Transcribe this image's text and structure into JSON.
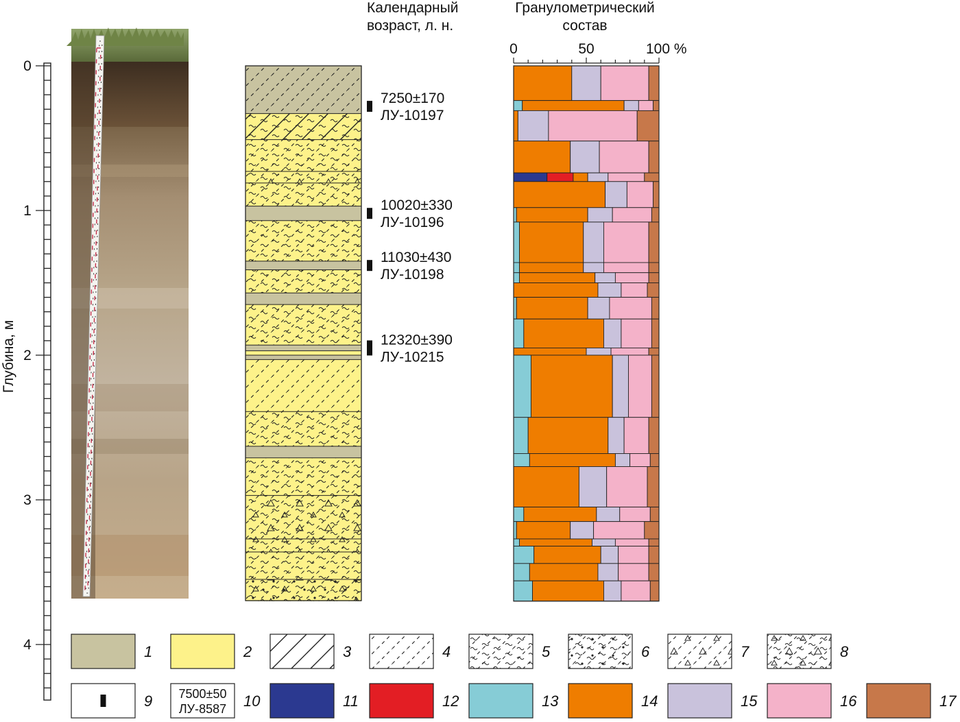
{
  "figure": {
    "depth_axis": {
      "label": "Глубина, м",
      "ticks": [
        0,
        1,
        2,
        3,
        4
      ],
      "range_m": [
        0,
        4.4
      ]
    },
    "age_header": [
      "Календарный",
      "возраст, л. н."
    ],
    "grain_header": [
      "Гранулометрический",
      "состав"
    ],
    "grain_ticks": [
      "0",
      "50",
      "100 %"
    ],
    "dates": [
      {
        "age": "7250±170",
        "lab": "ЛУ-10197",
        "depth_m": 0.28
      },
      {
        "age": "10020±330",
        "lab": "ЛУ-10196",
        "depth_m": 1.02
      },
      {
        "age": "11030±430",
        "lab": "ЛУ-10198",
        "depth_m": 1.38
      },
      {
        "age": "12320±390",
        "lab": "ЛУ-10215",
        "depth_m": 1.95
      }
    ],
    "legend": [
      {
        "num": "1",
        "type": "fill",
        "color": "#c8c3a0"
      },
      {
        "num": "2",
        "type": "fill",
        "color": "#fdf28a"
      },
      {
        "num": "3",
        "type": "hatch-solid"
      },
      {
        "num": "4",
        "type": "hatch-dashed"
      },
      {
        "num": "5",
        "type": "dashed-wavy"
      },
      {
        "num": "6",
        "type": "dashed-wavy-dots"
      },
      {
        "num": "7",
        "type": "dashed-triangles"
      },
      {
        "num": "8",
        "type": "dashed-wavy-triangles"
      },
      {
        "num": "9",
        "type": "date-marker"
      },
      {
        "num": "10",
        "type": "date-box",
        "text": [
          "7500±50",
          "ЛУ-8587"
        ]
      },
      {
        "num": "11",
        "type": "fill",
        "color": "#2b3990"
      },
      {
        "num": "12",
        "type": "fill",
        "color": "#e31e24"
      },
      {
        "num": "13",
        "type": "fill",
        "color": "#86ccd6"
      },
      {
        "num": "14",
        "type": "fill",
        "color": "#ef7d00"
      },
      {
        "num": "15",
        "type": "fill",
        "color": "#c9c2dc"
      },
      {
        "num": "16",
        "type": "fill",
        "color": "#f4b2c9"
      },
      {
        "num": "17",
        "type": "fill",
        "color": "#c7784a"
      }
    ]
  },
  "chart_data": {
    "type": "area",
    "xlabel": "Гранулометрический состав",
    "xlim": [
      0,
      100
    ],
    "x_unit": "%",
    "ylabel": "Глубина, м",
    "ylim": [
      0,
      3.7
    ],
    "legend_classes": [
      "11",
      "12",
      "13",
      "14",
      "15",
      "16",
      "17"
    ],
    "colors": {
      "11": "#2b3990",
      "12": "#e31e24",
      "13": "#86ccd6",
      "14": "#ef7d00",
      "15": "#c9c2dc",
      "16": "#f4b2c9",
      "17": "#c7784a"
    },
    "layers": [
      {
        "top": 0.0,
        "bottom": 0.24,
        "values": [
          0,
          0,
          0,
          40,
          20,
          33,
          7
        ]
      },
      {
        "top": 0.24,
        "bottom": 0.31,
        "values": [
          0,
          0,
          6,
          70,
          10,
          10,
          4
        ]
      },
      {
        "top": 0.31,
        "bottom": 0.52,
        "values": [
          0,
          0,
          0,
          3,
          21,
          61,
          15
        ]
      },
      {
        "top": 0.52,
        "bottom": 0.74,
        "values": [
          0,
          0,
          0,
          39,
          20,
          34,
          7
        ]
      },
      {
        "top": 0.74,
        "bottom": 0.8,
        "values": [
          23,
          18,
          0,
          10,
          14,
          25,
          10
        ]
      },
      {
        "top": 0.8,
        "bottom": 0.98,
        "values": [
          0,
          0,
          0,
          63,
          15,
          18,
          4
        ]
      },
      {
        "top": 0.98,
        "bottom": 1.08,
        "values": [
          0,
          0,
          2,
          49,
          17,
          27,
          5
        ]
      },
      {
        "top": 1.08,
        "bottom": 1.36,
        "values": [
          0,
          0,
          4,
          44,
          14,
          31,
          7
        ]
      },
      {
        "top": 1.36,
        "bottom": 1.43,
        "values": [
          0,
          0,
          4,
          44,
          14,
          31,
          7
        ]
      },
      {
        "top": 1.43,
        "bottom": 1.5,
        "values": [
          0,
          0,
          4,
          52,
          14,
          23,
          7
        ]
      },
      {
        "top": 1.5,
        "bottom": 1.6,
        "values": [
          0,
          0,
          0,
          58,
          16,
          18,
          8
        ]
      },
      {
        "top": 1.6,
        "bottom": 1.75,
        "values": [
          0,
          0,
          2,
          49,
          15,
          29,
          5
        ]
      },
      {
        "top": 1.75,
        "bottom": 1.95,
        "values": [
          0,
          0,
          7,
          55,
          12,
          21,
          5
        ]
      },
      {
        "top": 1.95,
        "bottom": 2.0,
        "values": [
          0,
          0,
          0,
          50,
          17,
          26,
          7
        ]
      },
      {
        "top": 2.0,
        "bottom": 2.43,
        "values": [
          0,
          0,
          12,
          56,
          11,
          16,
          5
        ]
      },
      {
        "top": 2.43,
        "bottom": 2.68,
        "values": [
          0,
          0,
          10,
          55,
          11,
          17,
          7
        ]
      },
      {
        "top": 2.68,
        "bottom": 2.77,
        "values": [
          0,
          0,
          11,
          59,
          10,
          14,
          6
        ]
      },
      {
        "top": 2.77,
        "bottom": 3.05,
        "values": [
          0,
          0,
          0,
          45,
          19,
          28,
          8
        ]
      },
      {
        "top": 3.05,
        "bottom": 3.15,
        "values": [
          0,
          0,
          7,
          50,
          16,
          21,
          6
        ]
      },
      {
        "top": 3.15,
        "bottom": 3.27,
        "values": [
          0,
          0,
          2,
          37,
          16,
          35,
          10
        ]
      },
      {
        "top": 3.27,
        "bottom": 3.32,
        "values": [
          0,
          0,
          4,
          50,
          16,
          23,
          7
        ]
      },
      {
        "top": 3.32,
        "bottom": 3.44,
        "values": [
          0,
          0,
          14,
          46,
          12,
          21,
          7
        ]
      },
      {
        "top": 3.44,
        "bottom": 3.56,
        "values": [
          0,
          0,
          11,
          47,
          14,
          21,
          7
        ]
      },
      {
        "top": 3.56,
        "bottom": 3.7,
        "values": [
          0,
          0,
          13,
          49,
          12,
          20,
          6
        ]
      }
    ]
  }
}
